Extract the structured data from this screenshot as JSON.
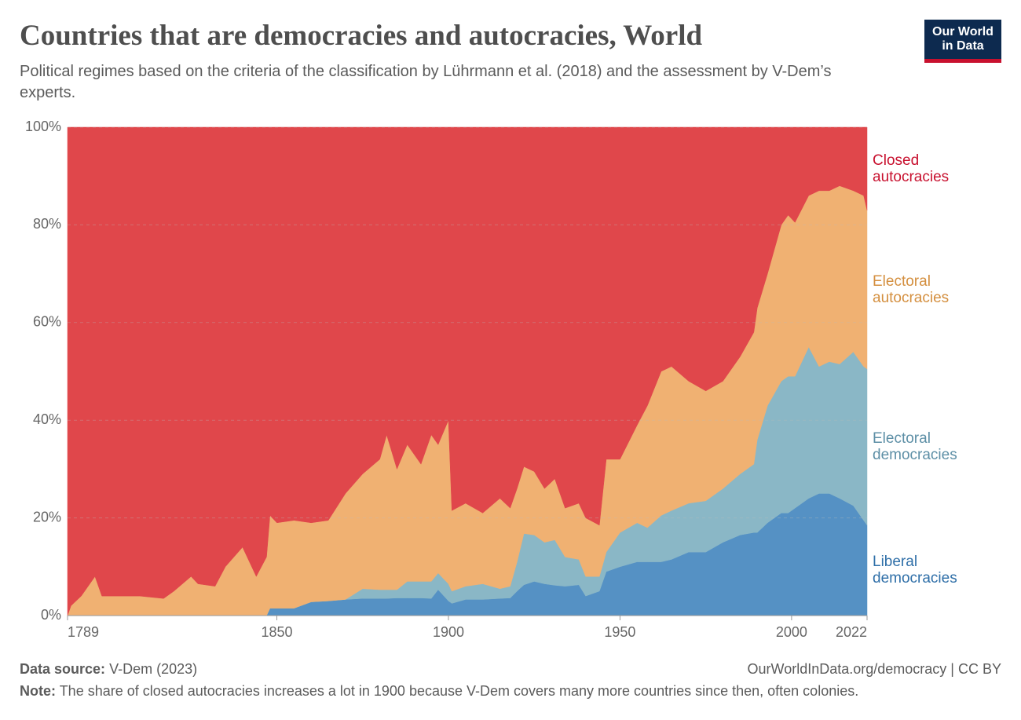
{
  "chart_data": {
    "type": "stacked-area",
    "title": "Countries that are democracies and autocracies, World",
    "subtitle": "Political regimes based on the criteria of the classification by Lührmann et al. (2018) and the assessment by V-Dem’s experts.",
    "x": [
      1789,
      1790,
      1793,
      1797,
      1799,
      1810,
      1817,
      1820,
      1825,
      1827,
      1832,
      1835,
      1840,
      1844,
      1847,
      1848,
      1850,
      1855,
      1860,
      1865,
      1870,
      1875,
      1880,
      1882,
      1885,
      1888,
      1892,
      1895,
      1897,
      1900,
      1901,
      1905,
      1910,
      1915,
      1918,
      1920,
      1922,
      1925,
      1928,
      1931,
      1934,
      1938,
      1940,
      1944,
      1946,
      1950,
      1955,
      1958,
      1962,
      1965,
      1970,
      1975,
      1980,
      1985,
      1989,
      1990,
      1993,
      1997,
      1999,
      2001,
      2005,
      2008,
      2011,
      2014,
      2018,
      2021,
      2022
    ],
    "series": [
      {
        "name": "Liberal democracies",
        "color": "#5591c4",
        "label_color": "#2f6fa8",
        "values": [
          0,
          0,
          0,
          0,
          0,
          0,
          0,
          0,
          0,
          0,
          0,
          0,
          0,
          0,
          0,
          1.5,
          1.5,
          1.5,
          2.8,
          3,
          3.3,
          3.5,
          3.5,
          3.5,
          3.6,
          3.6,
          3.6,
          3.5,
          5.3,
          3,
          2.5,
          3.3,
          3.3,
          3.5,
          3.6,
          5,
          6.3,
          7,
          6.5,
          6.2,
          6,
          6.3,
          4,
          5,
          9,
          10,
          11,
          11,
          11,
          11.5,
          13,
          13,
          15,
          16.5,
          17,
          17,
          19,
          21,
          21,
          22,
          24,
          25,
          25,
          24,
          22.5,
          19.5,
          18.5
        ]
      },
      {
        "name": "Electoral democracies",
        "color": "#8ab7c6",
        "label_color": "#5d8fa6",
        "values": [
          0,
          0,
          0,
          0,
          0,
          0,
          0,
          0,
          0,
          0,
          0,
          0,
          0,
          0,
          0,
          0,
          0,
          0,
          0,
          0,
          0,
          2,
          1.8,
          1.8,
          1.7,
          3.4,
          3.4,
          3.5,
          3.4,
          3.5,
          2.5,
          2.7,
          3.2,
          2,
          2.4,
          6,
          10.5,
          9.5,
          8.5,
          9.3,
          6,
          5.2,
          4,
          3,
          4,
          7,
          8,
          7,
          9.5,
          10,
          10,
          10.5,
          11,
          12.5,
          14,
          19,
          24,
          27,
          28,
          27,
          31,
          26,
          27,
          27.5,
          31.5,
          31.5,
          32
        ]
      },
      {
        "name": "Electoral autocracies",
        "color": "#f0b172",
        "label_color": "#d48f3f",
        "values": [
          0,
          2,
          4,
          8,
          4,
          4,
          3.5,
          5,
          8,
          6.5,
          6,
          10,
          14,
          8,
          12,
          19,
          17.5,
          18,
          16.2,
          16.5,
          21.7,
          23.5,
          26.7,
          31.7,
          24.7,
          28,
          24,
          30,
          26.3,
          33.5,
          16.5,
          17,
          14.5,
          18.5,
          16,
          15,
          13.7,
          13,
          11,
          12.5,
          10,
          11.5,
          12,
          10.5,
          19,
          15,
          20,
          25,
          29.5,
          29.5,
          25,
          22.5,
          22,
          24,
          27,
          27,
          27,
          32,
          33,
          31.5,
          31,
          36,
          35,
          36.5,
          33,
          35,
          32.5
        ]
      },
      {
        "name": "Closed autocracies",
        "color": "#e0474b",
        "label_color": "#c8102e",
        "values": [
          100,
          98,
          96,
          92,
          96,
          96,
          96.5,
          95,
          92,
          93.5,
          94,
          90,
          86,
          92,
          88,
          79.5,
          81,
          80.5,
          81,
          80.5,
          75,
          71,
          68,
          63,
          70,
          65,
          69,
          63,
          65,
          60,
          78.5,
          77,
          79,
          76,
          78,
          74,
          69.5,
          70.5,
          74,
          72,
          78,
          77,
          80,
          81.5,
          68,
          68,
          61,
          57,
          50,
          49,
          52,
          54,
          52,
          47,
          42,
          37,
          30,
          20,
          18,
          19.5,
          14,
          13,
          13,
          12,
          13,
          14,
          17
        ]
      }
    ],
    "xlim": [
      1789,
      2022
    ],
    "xticks": [
      1789,
      1850,
      1900,
      1950,
      2000,
      2022
    ],
    "ylim": [
      0,
      100
    ],
    "yticks": [
      {
        "value": 0,
        "label": "0%"
      },
      {
        "value": 20,
        "label": "20%"
      },
      {
        "value": 40,
        "label": "40%"
      },
      {
        "value": 60,
        "label": "60%"
      },
      {
        "value": 80,
        "label": "80%"
      },
      {
        "value": 100,
        "label": "100%"
      }
    ],
    "grid": true
  },
  "logo": "Our World in Data",
  "footer": {
    "source_label": "Data source:",
    "source": "V-Dem (2023)",
    "url": "OurWorldInData.org/democracy | CC BY",
    "note_label": "Note:",
    "note": "The share of closed autocracies increases a lot in 1900 because V-Dem covers many more countries since then, often colonies."
  }
}
